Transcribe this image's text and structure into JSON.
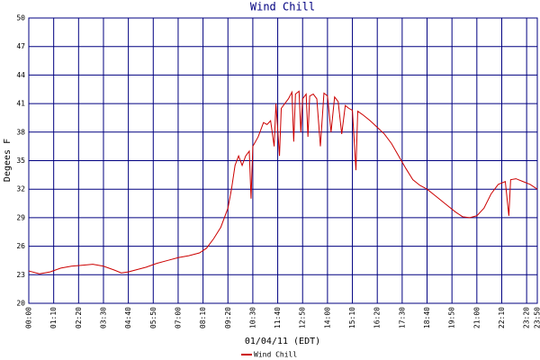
{
  "chart_data": {
    "type": "line",
    "title": "Wind Chill",
    "x_label": "01/04/11 (EDT)",
    "y_label": "Degees F",
    "x": [
      "00:00",
      "00:30",
      "01:00",
      "01:30",
      "02:00",
      "02:30",
      "03:00",
      "03:30",
      "04:00",
      "04:20",
      "04:40",
      "05:00",
      "05:30",
      "06:00",
      "06:30",
      "07:00",
      "07:30",
      "08:00",
      "08:20",
      "08:40",
      "09:00",
      "09:20",
      "09:30",
      "09:40",
      "09:50",
      "10:00",
      "10:10",
      "10:20",
      "10:25",
      "10:30",
      "10:45",
      "11:00",
      "11:10",
      "11:20",
      "11:30",
      "11:35",
      "11:45",
      "11:50",
      "12:00",
      "12:10",
      "12:20",
      "12:25",
      "12:30",
      "12:40",
      "12:45",
      "12:50",
      "13:00",
      "13:05",
      "13:10",
      "13:20",
      "13:30",
      "13:40",
      "13:50",
      "14:00",
      "14:10",
      "14:20",
      "14:30",
      "14:40",
      "14:50",
      "15:00",
      "15:10",
      "15:20",
      "15:25",
      "15:40",
      "16:00",
      "16:20",
      "16:40",
      "17:00",
      "17:20",
      "17:40",
      "18:00",
      "18:20",
      "18:40",
      "19:00",
      "19:20",
      "19:40",
      "20:00",
      "20:20",
      "20:40",
      "21:00",
      "21:20",
      "21:40",
      "22:00",
      "22:20",
      "22:30",
      "22:35",
      "22:50",
      "23:10",
      "23:30",
      "23:50"
    ],
    "series": [
      {
        "name": "Wind Chill",
        "color": "#cc0000",
        "values": [
          23.4,
          23.1,
          23.3,
          23.7,
          23.9,
          24.0,
          24.1,
          23.9,
          23.5,
          23.2,
          23.3,
          23.5,
          23.8,
          24.2,
          24.5,
          24.8,
          25.0,
          25.3,
          25.8,
          26.8,
          28.0,
          30.0,
          32.0,
          34.5,
          35.5,
          34.5,
          35.5,
          36.0,
          31.0,
          36.5,
          37.5,
          39.0,
          38.8,
          39.2,
          36.5,
          41.0,
          35.5,
          40.5,
          41.0,
          41.5,
          42.2,
          37.0,
          42.0,
          42.3,
          38.0,
          41.5,
          42.0,
          37.5,
          41.8,
          42.0,
          41.5,
          36.5,
          42.1,
          41.8,
          38.0,
          41.7,
          41.2,
          37.8,
          40.8,
          40.5,
          40.3,
          34.0,
          40.2,
          39.8,
          39.2,
          38.5,
          37.8,
          36.8,
          35.5,
          34.2,
          33.0,
          32.4,
          32.0,
          31.4,
          30.8,
          30.2,
          29.6,
          29.1,
          29.0,
          29.2,
          30.0,
          31.5,
          32.5,
          32.8,
          29.2,
          33.0,
          33.1,
          32.8,
          32.5,
          32.0
        ]
      }
    ],
    "xlim": [
      "00:00",
      "23:50"
    ],
    "xticks": [
      "00:00",
      "01:10",
      "02:20",
      "03:30",
      "04:40",
      "05:50",
      "07:00",
      "08:10",
      "09:20",
      "10:30",
      "11:40",
      "12:50",
      "14:00",
      "15:10",
      "16:20",
      "17:30",
      "18:40",
      "19:50",
      "21:00",
      "22:10",
      "23:20",
      "23:50"
    ],
    "ylim": [
      20,
      50
    ],
    "yticks": [
      20,
      23,
      26,
      29,
      32,
      35,
      38,
      41,
      44,
      47,
      50
    ],
    "grid": true
  }
}
